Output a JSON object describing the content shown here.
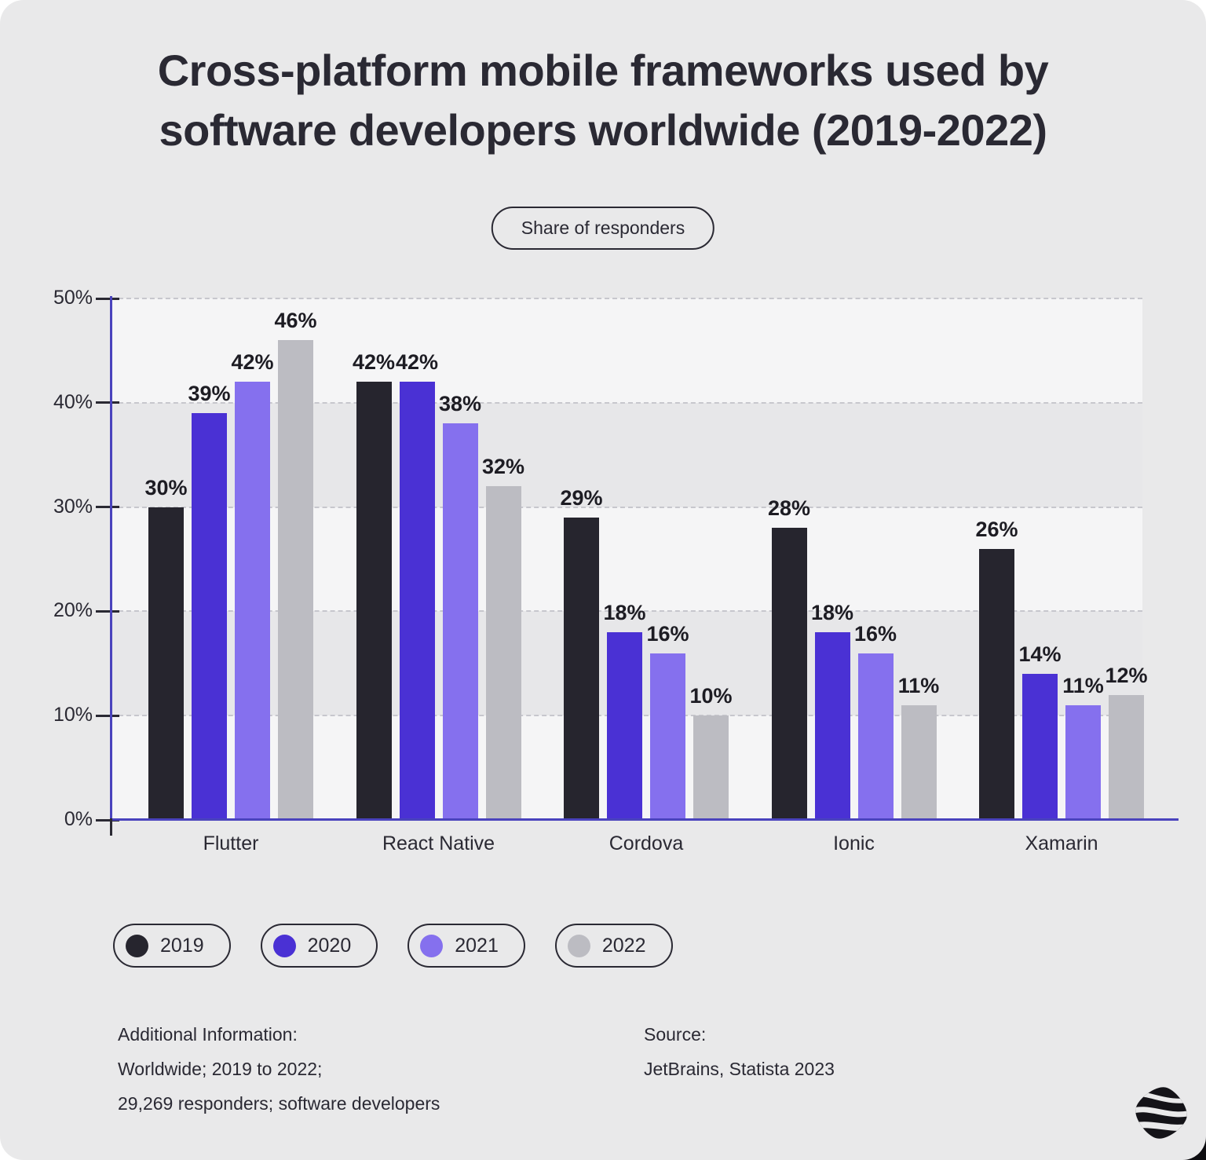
{
  "title": "Cross-platform mobile frameworks used by software developers worldwide (2019-2022)",
  "subtitle_pill": "Share of responders",
  "chart_data": {
    "type": "bar",
    "categories": [
      "Flutter",
      "React Native",
      "Cordova",
      "Ionic",
      "Xamarin"
    ],
    "series": [
      {
        "name": "2019",
        "color": "#26252e",
        "values": [
          30,
          42,
          29,
          28,
          26
        ]
      },
      {
        "name": "2020",
        "color": "#4a31d4",
        "values": [
          39,
          42,
          18,
          18,
          14
        ]
      },
      {
        "name": "2021",
        "color": "#8570ee",
        "values": [
          42,
          38,
          16,
          16,
          11
        ]
      },
      {
        "name": "2022",
        "color": "#bcbcc2",
        "values": [
          46,
          32,
          10,
          11,
          12
        ]
      }
    ],
    "title": "Cross-platform mobile frameworks used by software developers worldwide (2019-2022)",
    "subtitle": "Share of responders",
    "xlabel": "",
    "ylabel": "Share of responders",
    "ylim": [
      0,
      50
    ],
    "ytick_step": 10,
    "yticks": [
      "0%",
      "10%",
      "20%",
      "30%",
      "40%",
      "50%"
    ],
    "value_suffix": "%",
    "data_labels": true,
    "grid": "horizontal-dashed",
    "legend_position": "bottom-left",
    "style": {
      "axis_color": "#4a43bd",
      "grid_color": "#c7c7cd",
      "band_light": "#f5f5f6",
      "band_dark": "#e7e7e9",
      "label_color": "#1d1c23",
      "background": "#e9e9ea"
    }
  },
  "footer": {
    "additional": [
      "Additional Information:",
      "Worldwide; 2019 to 2022;",
      "29,269 responders; software developers"
    ],
    "source": [
      "Source:",
      "JetBrains, Statista 2023"
    ]
  },
  "logo": {
    "name": "swirl-diamond-logo"
  }
}
